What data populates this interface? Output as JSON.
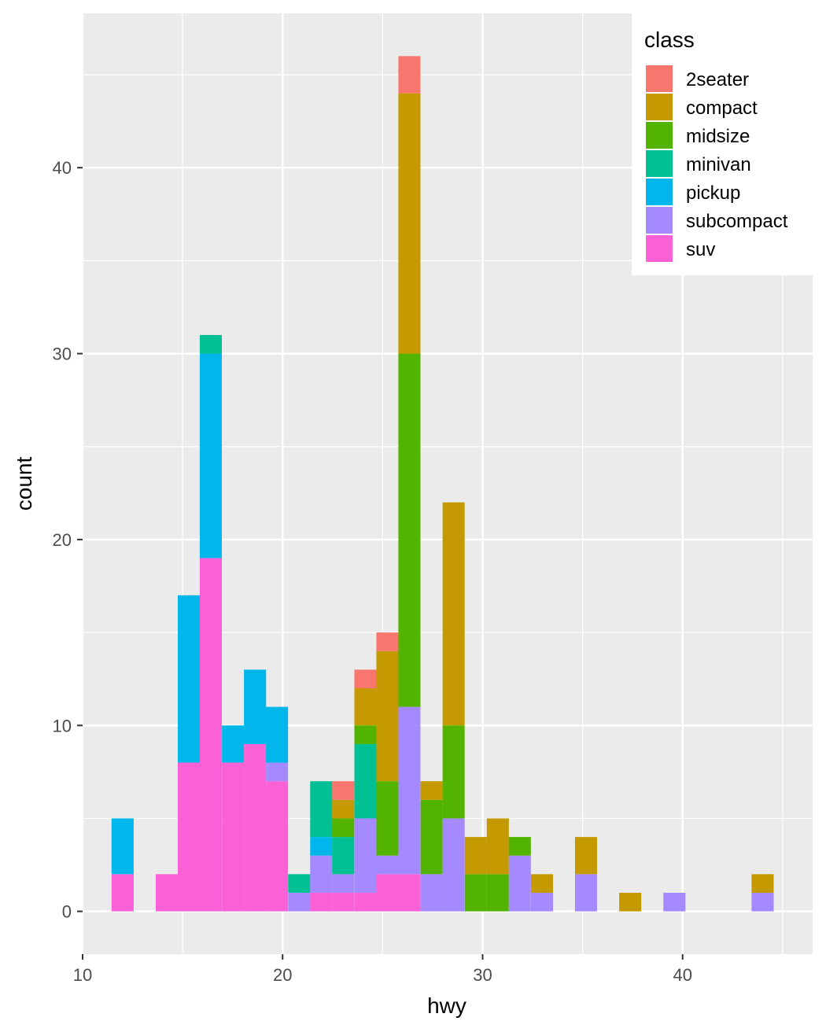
{
  "chart_data": {
    "type": "bar",
    "stacked": true,
    "xlabel": "hwy",
    "ylabel": "count",
    "xlim": [
      10,
      46.5
    ],
    "ylim": [
      -2.3,
      48.3
    ],
    "x_ticks": [
      10,
      20,
      30,
      40
    ],
    "x_tick_labels": [
      "10",
      "20",
      "30",
      "40"
    ],
    "y_ticks": [
      0,
      10,
      20,
      30,
      40
    ],
    "y_tick_labels": [
      "0",
      "10",
      "20",
      "30",
      "40"
    ],
    "bin_width": 1.1034,
    "x": [
      12,
      13.1,
      14.21,
      15.31,
      16.41,
      17.52,
      18.62,
      19.72,
      20.83,
      21.93,
      23.03,
      24.14,
      25.24,
      26.34,
      27.45,
      28.55,
      29.66,
      30.76,
      31.86,
      32.97,
      34.07,
      35.17,
      36.28,
      37.38,
      38.48,
      39.59,
      40.69,
      41.79,
      42.9,
      44
    ],
    "series": [
      {
        "name": "2seater",
        "color": "#F8766D",
        "values": [
          0,
          0,
          0,
          0,
          0,
          0,
          0,
          0,
          0,
          0,
          1,
          1,
          1,
          2,
          0,
          0,
          0,
          0,
          0,
          0,
          0,
          0,
          0,
          0,
          0,
          0,
          0,
          0,
          0,
          0
        ]
      },
      {
        "name": "compact",
        "color": "#C49A00",
        "values": [
          0,
          0,
          0,
          0,
          0,
          0,
          0,
          0,
          0,
          0,
          1,
          2,
          7,
          14,
          1,
          12,
          2,
          3,
          0,
          1,
          0,
          2,
          0,
          1,
          0,
          0,
          0,
          0,
          0,
          1
        ]
      },
      {
        "name": "midsize",
        "color": "#53B400",
        "values": [
          0,
          0,
          0,
          0,
          0,
          0,
          0,
          0,
          0,
          0,
          1,
          1,
          4,
          19,
          4,
          5,
          2,
          2,
          1,
          0,
          0,
          0,
          0,
          0,
          0,
          0,
          0,
          0,
          0,
          0
        ]
      },
      {
        "name": "minivan",
        "color": "#00C094",
        "values": [
          0,
          0,
          0,
          0,
          1,
          0,
          0,
          0,
          1,
          3,
          2,
          4,
          0,
          0,
          0,
          0,
          0,
          0,
          0,
          0,
          0,
          0,
          0,
          0,
          0,
          0,
          0,
          0,
          0,
          0
        ]
      },
      {
        "name": "pickup",
        "color": "#00B6EB",
        "values": [
          3,
          0,
          0,
          9,
          11,
          2,
          4,
          3,
          0,
          1,
          0,
          0,
          0,
          0,
          0,
          0,
          0,
          0,
          0,
          0,
          0,
          0,
          0,
          0,
          0,
          0,
          0,
          0,
          0,
          0
        ]
      },
      {
        "name": "subcompact",
        "color": "#A58AFF",
        "values": [
          0,
          0,
          0,
          0,
          0,
          0,
          0,
          1,
          1,
          2,
          1,
          4,
          1,
          9,
          2,
          5,
          0,
          0,
          3,
          1,
          0,
          2,
          0,
          0,
          0,
          1,
          0,
          0,
          0,
          1
        ]
      },
      {
        "name": "suv",
        "color": "#FB61D7",
        "values": [
          2,
          0,
          2,
          8,
          19,
          8,
          9,
          7,
          0,
          1,
          1,
          1,
          2,
          2,
          0,
          0,
          0,
          0,
          0,
          0,
          0,
          0,
          0,
          0,
          0,
          0,
          0,
          0,
          0,
          0
        ]
      }
    ],
    "legend": {
      "title": "class",
      "placement": "right",
      "entries": [
        "2seater",
        "compact",
        "midsize",
        "minivan",
        "pickup",
        "subcompact",
        "suv"
      ]
    },
    "grid": true,
    "panel_background": "#EBEBEB",
    "grid_color": "#FFFFFF"
  }
}
